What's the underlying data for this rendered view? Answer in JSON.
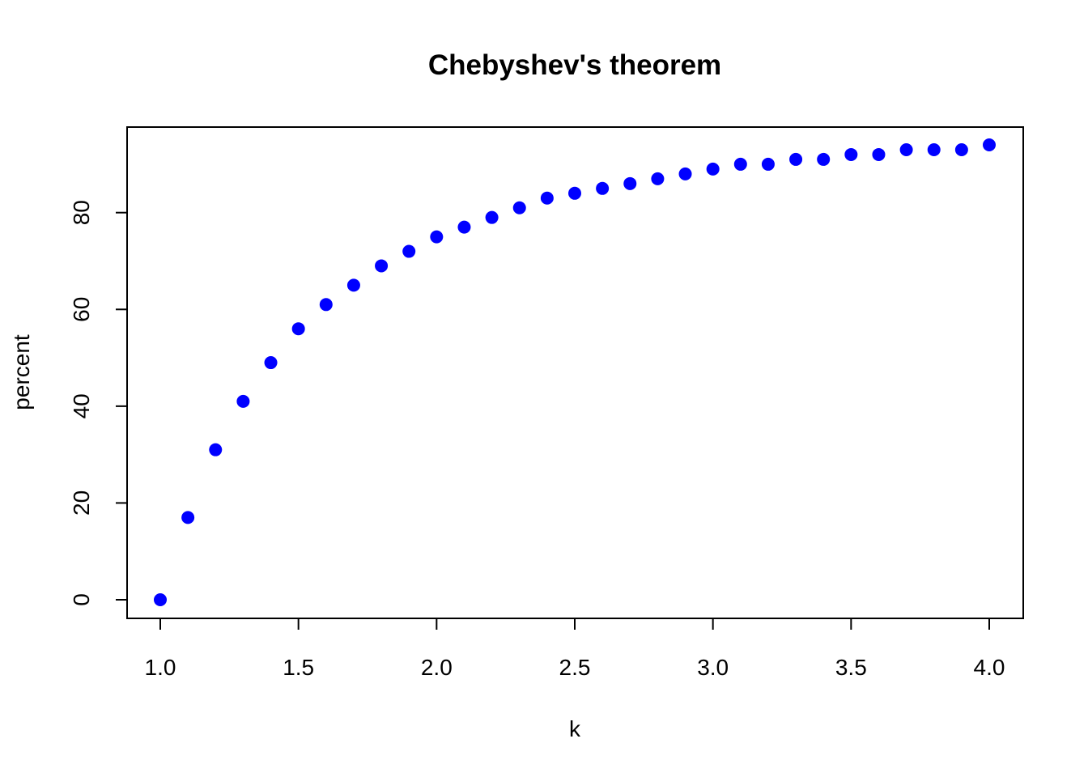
{
  "chart_data": {
    "type": "scatter",
    "title": "Chebyshev's theorem",
    "xlabel": "k",
    "ylabel": "percent",
    "xlim": [
      1.0,
      4.0
    ],
    "ylim": [
      0,
      94
    ],
    "x_ticks": [
      "1.0",
      "1.5",
      "2.0",
      "2.5",
      "3.0",
      "3.5",
      "4.0"
    ],
    "y_ticks": [
      "0",
      "20",
      "40",
      "60",
      "80"
    ],
    "point_color": "#0000ff",
    "series": [
      {
        "name": "percent",
        "x": [
          1.0,
          1.1,
          1.2,
          1.3,
          1.4,
          1.5,
          1.6,
          1.7,
          1.8,
          1.9,
          2.0,
          2.1,
          2.2,
          2.3,
          2.4,
          2.5,
          2.6,
          2.7,
          2.8,
          2.9,
          3.0,
          3.1,
          3.2,
          3.3,
          3.4,
          3.5,
          3.6,
          3.7,
          3.8,
          3.9,
          4.0
        ],
        "y": [
          0,
          17,
          31,
          41,
          49,
          56,
          61,
          65,
          69,
          72,
          75,
          77,
          79,
          81,
          83,
          84,
          85,
          86,
          87,
          88,
          89,
          90,
          90,
          91,
          91,
          92,
          92,
          93,
          93,
          93,
          94
        ]
      }
    ]
  }
}
